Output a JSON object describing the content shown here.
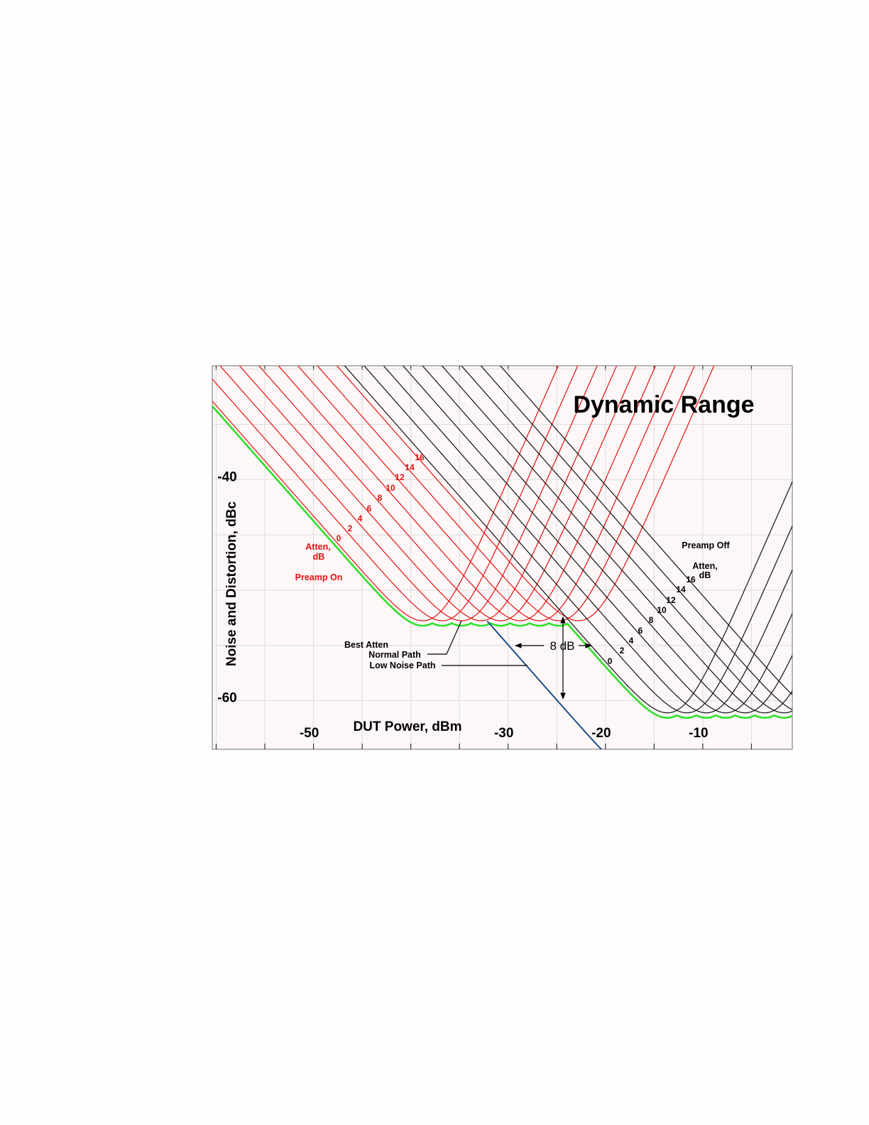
{
  "chart_data": {
    "type": "line",
    "title": "Dynamic Range",
    "xlabel": "DUT Power, dBm",
    "ylabel": "Noise and Distortion, dBc",
    "xlim": [
      -60.4,
      -0.8
    ],
    "ylim": [
      -64.4,
      -29.7
    ],
    "x_grid_step": 5,
    "y_grid_step": 5,
    "grid": true,
    "x_tick_labels": [
      {
        "value": -50,
        "label": "-50"
      },
      {
        "value": -30,
        "label": "-30"
      },
      {
        "value": -20,
        "label": "-20"
      },
      {
        "value": -10,
        "label": "-10"
      }
    ],
    "y_tick_labels": [
      {
        "value": -40,
        "label": "-40"
      },
      {
        "value": -60,
        "label": "-60"
      }
    ],
    "colors": {
      "preamp_on": "#e41010",
      "preamp_off": "#111111",
      "best_atten_normal": "#2fe02a",
      "low_noise": "#1b4f8c",
      "background": "#fdf7f7",
      "grid": "#dddddd"
    },
    "families": [
      {
        "key": "preamp_on",
        "group_label": "Preamp On",
        "atten_title": "Atten,",
        "atten_unit": "dB",
        "attenuations_db": [
          0,
          2,
          4,
          6,
          8,
          10,
          12,
          14,
          16
        ],
        "atten_labels": [
          "0",
          "2",
          "4",
          "6",
          "8",
          "10",
          "12",
          "14",
          "16"
        ],
        "noise_dbc_at_0dbm": -93.3,
        "noise_slope": -1,
        "distortion_dbc_at_0dbm": 20,
        "distortion_slope": 2
      },
      {
        "key": "preamp_off",
        "group_label": "Preamp Off",
        "atten_title": "Atten,",
        "atten_unit": "dB",
        "attenuations_db": [
          0,
          2,
          4,
          6,
          8,
          10,
          12,
          14,
          16
        ],
        "atten_labels": [
          "16",
          "14",
          "12",
          "10",
          "8",
          "6",
          "4",
          "2",
          "0"
        ],
        "noise_dbc_at_0dbm": -76.5,
        "noise_slope": -1,
        "distortion_dbc_at_0dbm": -38.6,
        "distortion_slope": 2
      }
    ],
    "envelopes": {
      "best_atten_label": "Best Atten",
      "normal_path_label": "Normal Path",
      "low_noise_path_label": "Low Noise Path",
      "low_noise_improvement_db": 8,
      "low_noise_range_dbm": [
        -32.2,
        -14.5
      ]
    },
    "annotation_8db": "8 dB"
  }
}
